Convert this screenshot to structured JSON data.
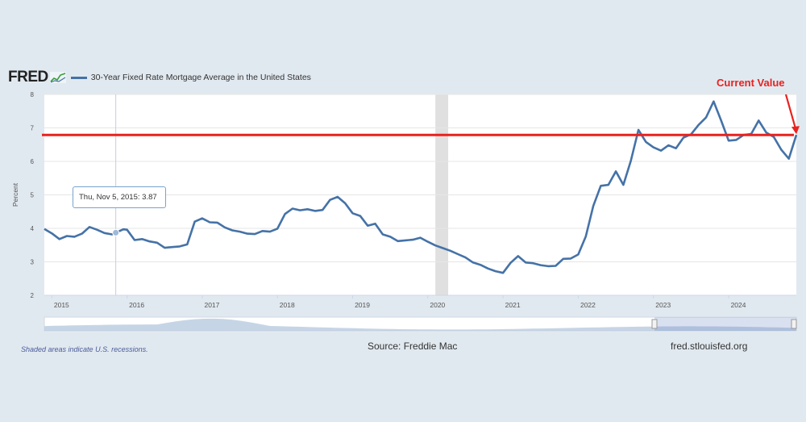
{
  "header": {
    "logo": "FRED",
    "title": "30-Year Fixed Rate Mortgage Average in the United States"
  },
  "footer": {
    "recession_note": "Shaded areas indicate U.S. recessions.",
    "source": "Source: Freddie Mac",
    "site": "fred.stlouisfed.org"
  },
  "tooltip": {
    "date": "Thu, Nov 5, 2015:",
    "value": "3.87",
    "date_numeric": 2015.85
  },
  "annotation": {
    "label": "Current Value",
    "value": 6.79,
    "color": "#e8221f"
  },
  "colors": {
    "series": "#4572a7",
    "recession": "#e0e0e0",
    "grid": "#e6e6e6",
    "annotation": "#e8221f"
  },
  "chart_data": {
    "type": "line",
    "title": "30-Year Fixed Rate Mortgage Average in the United States",
    "xlabel": "",
    "ylabel": "Percent",
    "xlim": [
      2014.9,
      2024.9
    ],
    "ylim": [
      2,
      8
    ],
    "yticks": [
      2,
      3,
      4,
      5,
      6,
      7,
      8
    ],
    "xticks": [
      {
        "value": 2015,
        "label": "2015"
      },
      {
        "value": 2016,
        "label": "2016"
      },
      {
        "value": 2017,
        "label": "2017"
      },
      {
        "value": 2018,
        "label": "2018"
      },
      {
        "value": 2019,
        "label": "2019"
      },
      {
        "value": 2020,
        "label": "2020"
      },
      {
        "value": 2021,
        "label": "2021"
      },
      {
        "value": 2022,
        "label": "2022"
      },
      {
        "value": 2023,
        "label": "2023"
      },
      {
        "value": 2024,
        "label": "2024"
      }
    ],
    "recessions": [
      [
        2020.1,
        2020.27
      ]
    ],
    "horizontal_line": 6.79,
    "series": [
      {
        "name": "30-Year Fixed Rate Mortgage Average",
        "x": [
          2014.9,
          2015.0,
          2015.1,
          2015.2,
          2015.3,
          2015.4,
          2015.5,
          2015.6,
          2015.7,
          2015.8,
          2015.85,
          2015.95,
          2016.0,
          2016.1,
          2016.2,
          2016.3,
          2016.4,
          2016.5,
          2016.6,
          2016.7,
          2016.8,
          2016.9,
          2017.0,
          2017.1,
          2017.2,
          2017.3,
          2017.4,
          2017.5,
          2017.6,
          2017.7,
          2017.8,
          2017.9,
          2018.0,
          2018.1,
          2018.2,
          2018.3,
          2018.4,
          2018.5,
          2018.6,
          2018.7,
          2018.8,
          2018.9,
          2019.0,
          2019.1,
          2019.2,
          2019.3,
          2019.4,
          2019.5,
          2019.6,
          2019.7,
          2019.8,
          2019.9,
          2020.0,
          2020.1,
          2020.2,
          2020.3,
          2020.4,
          2020.5,
          2020.6,
          2020.7,
          2020.8,
          2020.9,
          2021.0,
          2021.1,
          2021.2,
          2021.3,
          2021.4,
          2021.5,
          2021.6,
          2021.7,
          2021.8,
          2021.9,
          2022.0,
          2022.1,
          2022.2,
          2022.3,
          2022.4,
          2022.5,
          2022.6,
          2022.7,
          2022.8,
          2022.9,
          2023.0,
          2023.1,
          2023.2,
          2023.3,
          2023.4,
          2023.5,
          2023.6,
          2023.7,
          2023.8,
          2023.9,
          2024.0,
          2024.1,
          2024.2,
          2024.3,
          2024.4,
          2024.5,
          2024.6,
          2024.7,
          2024.8,
          2024.9
        ],
        "values": [
          3.98,
          3.85,
          3.68,
          3.77,
          3.75,
          3.84,
          4.04,
          3.96,
          3.86,
          3.82,
          3.87,
          3.97,
          3.96,
          3.65,
          3.68,
          3.61,
          3.57,
          3.42,
          3.44,
          3.46,
          3.52,
          4.2,
          4.3,
          4.18,
          4.17,
          4.03,
          3.94,
          3.9,
          3.84,
          3.83,
          3.92,
          3.9,
          3.99,
          4.43,
          4.59,
          4.54,
          4.57,
          4.52,
          4.55,
          4.85,
          4.94,
          4.75,
          4.45,
          4.37,
          4.08,
          4.14,
          3.82,
          3.75,
          3.62,
          3.64,
          3.66,
          3.72,
          3.6,
          3.49,
          3.41,
          3.33,
          3.23,
          3.13,
          2.98,
          2.91,
          2.8,
          2.72,
          2.67,
          2.97,
          3.17,
          2.98,
          2.96,
          2.9,
          2.87,
          2.88,
          3.09,
          3.1,
          3.22,
          3.76,
          4.67,
          5.27,
          5.3,
          5.7,
          5.3,
          6.02,
          6.94,
          6.58,
          6.42,
          6.32,
          6.48,
          6.39,
          6.71,
          6.81,
          7.09,
          7.31,
          7.79,
          7.22,
          6.62,
          6.64,
          6.79,
          6.82,
          7.22,
          6.86,
          6.73,
          6.35,
          6.08,
          6.79
        ]
      }
    ]
  }
}
